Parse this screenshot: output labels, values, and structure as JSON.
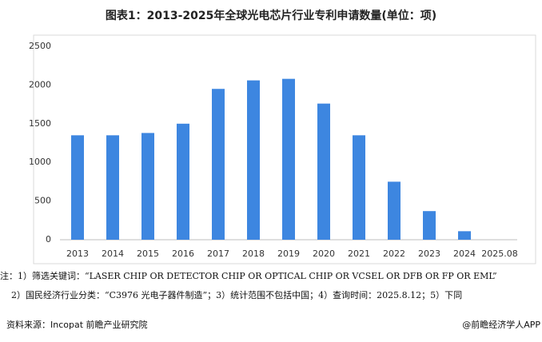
{
  "chart_data": {
    "type": "bar",
    "title": "图表1：2013-2025年全球光电芯片行业专利申请数量(单位：项)",
    "categories": [
      "2013",
      "2014",
      "2015",
      "2016",
      "2017",
      "2018",
      "2019",
      "2020",
      "2021",
      "2022",
      "2023",
      "2024",
      "2025.08"
    ],
    "values": [
      1350,
      1350,
      1380,
      1500,
      1950,
      2060,
      2080,
      1760,
      1350,
      750,
      370,
      110,
      0
    ],
    "color": "#3d86e0",
    "ylim": [
      0,
      2500
    ],
    "yticks": [
      0,
      500,
      1000,
      1500,
      2000,
      2500
    ],
    "grid": false,
    "notes": [
      "注：1）筛选关键词：“LASER CHIP OR DETECTOR CHIP OR OPTICAL CHIP OR VCSEL OR DFB OR FP OR EML”",
      "2）国民经济行业分类：“C3976 光电子器件制造”；3）统计范围不包括中国；4）查询时间：2025.8.12；5）下同"
    ],
    "source": "资料来源：Incopat 前瞻产业研究院",
    "credit": "@前瞻经济学人APP"
  }
}
